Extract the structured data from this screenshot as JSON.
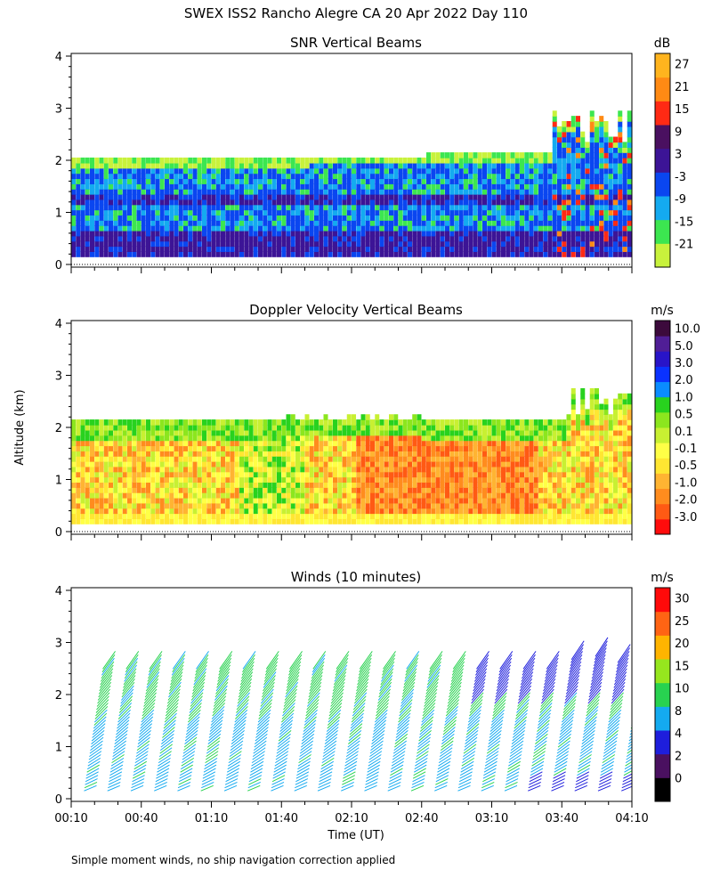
{
  "page_title": "SWEX ISS2 Rancho Alegre CA  20 Apr 2022 Day 110",
  "y_axis_label": "Altitude (km)",
  "x_axis_label": "Time (UT)",
  "footnote": "Simple moment winds, no ship navigation correction applied",
  "colors": {
    "snr": [
      "#c8f23c",
      "#3ce650",
      "#14aaf0",
      "#0a46f0",
      "#3c1496",
      "#4a1060",
      "#ff2a14",
      "#ff8a14",
      "#ffb41e"
    ],
    "doppler": [
      "#ff0c0c",
      "#ff5a14",
      "#ff8c1e",
      "#ffb432",
      "#ffe632",
      "#ffff46",
      "#c8f032",
      "#8ce61e",
      "#28d21e",
      "#0a8cff",
      "#0a32ff",
      "#2814c8",
      "#501e96",
      "#3c0a3c"
    ],
    "winds": [
      "#000000",
      "#4a1060",
      "#1e1edc",
      "#14aaf0",
      "#28d250",
      "#96e61e",
      "#ffb400",
      "#ff6414",
      "#ff0a0a"
    ]
  },
  "chart_data": [
    {
      "type": "heatmap",
      "title": "SNR Vertical Beams",
      "ylabel": "Altitude (km)",
      "xlim": [
        "00:10",
        "04:10"
      ],
      "ylim": [
        0,
        4
      ],
      "yticks": [
        "0",
        "1",
        "2",
        "3",
        "4"
      ],
      "colorbar_unit": "dB",
      "colorbar_labels": [
        "-21",
        "-15",
        "-9",
        "-3",
        "3",
        "9",
        "15",
        "21",
        "27"
      ],
      "top_of_coverage_km": 2.0
    },
    {
      "type": "heatmap",
      "title": "Doppler Velocity Vertical Beams",
      "ylabel": "Altitude (km)",
      "xlim": [
        "00:10",
        "04:10"
      ],
      "ylim": [
        0,
        4
      ],
      "yticks": [
        "0",
        "1",
        "2",
        "3",
        "4"
      ],
      "colorbar_unit": "m/s",
      "colorbar_labels": [
        "-3.0",
        "-2.0",
        "-1.0",
        "-0.5",
        "-0.1",
        "0.1",
        "0.5",
        "1.0",
        "2.0",
        "3.0",
        "5.0",
        "10.0"
      ],
      "top_of_coverage_km": 2.1
    },
    {
      "type": "scatter",
      "title": "Winds (10 minutes)",
      "ylabel": "Altitude (km)",
      "xlabel": "Time (UT)",
      "xlim": [
        "00:10",
        "04:10"
      ],
      "ylim": [
        0,
        4
      ],
      "yticks": [
        "0",
        "1",
        "2",
        "3",
        "4"
      ],
      "xticks": [
        "00:10",
        "00:40",
        "01:10",
        "01:40",
        "02:10",
        "02:40",
        "03:10",
        "03:40",
        "04:10"
      ],
      "colorbar_unit": "m/s",
      "colorbar_labels": [
        "0",
        "2",
        "4",
        "8",
        "10",
        "15",
        "20",
        "25",
        "30"
      ],
      "profile_interval_minutes": 10
    }
  ]
}
